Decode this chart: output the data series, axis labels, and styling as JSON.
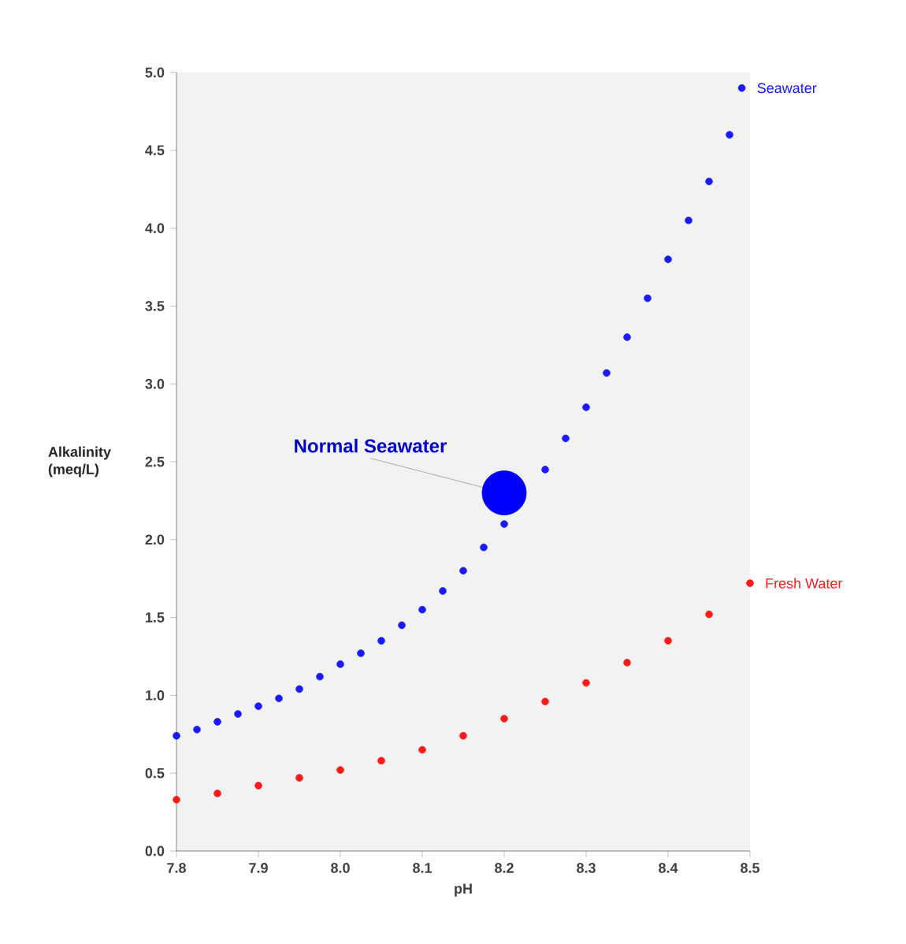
{
  "chart_data": {
    "type": "scatter",
    "xlabel": "pH",
    "ylabel": "Alkalinity (meq/L)",
    "xlim": [
      7.8,
      8.5
    ],
    "ylim": [
      0,
      5
    ],
    "xticks": [
      {
        "value": 7.8,
        "label": "7.8"
      },
      {
        "value": 7.9,
        "label": "7.9"
      },
      {
        "value": 8.0,
        "label": "8.0"
      },
      {
        "value": 8.1,
        "label": "8.1"
      },
      {
        "value": 8.2,
        "label": "8.2"
      },
      {
        "value": 8.3,
        "label": "8.3"
      },
      {
        "value": 8.4,
        "label": "8.4"
      },
      {
        "value": 8.5,
        "label": "8.5"
      }
    ],
    "yticks": [
      {
        "value": 0,
        "label": "0.0"
      },
      {
        "value": 0.5,
        "label": "0.5"
      },
      {
        "value": 1,
        "label": "1.0"
      },
      {
        "value": 1.5,
        "label": "1.5"
      },
      {
        "value": 2,
        "label": "2.0"
      },
      {
        "value": 2.5,
        "label": "2.5"
      },
      {
        "value": 3,
        "label": "3.0"
      },
      {
        "value": 3.5,
        "label": "3.5"
      },
      {
        "value": 4,
        "label": "4.0"
      },
      {
        "value": 4.5,
        "label": "4.5"
      },
      {
        "value": 5,
        "label": "5.0"
      }
    ],
    "series": [
      {
        "name": "Seawater",
        "color": "#1a1aff",
        "x": [
          7.8,
          7.825,
          7.85,
          7.875,
          7.9,
          7.925,
          7.95,
          7.975,
          8.0,
          8.025,
          8.05,
          8.075,
          8.1,
          8.125,
          8.15,
          8.175,
          8.2,
          8.225,
          8.25,
          8.275,
          8.3,
          8.325,
          8.35,
          8.375,
          8.4,
          8.425,
          8.45,
          8.475,
          8.49
        ],
        "values": [
          0.74,
          0.78,
          0.83,
          0.88,
          0.93,
          0.98,
          1.04,
          1.12,
          1.2,
          1.27,
          1.35,
          1.45,
          1.55,
          1.67,
          1.8,
          1.95,
          2.1,
          null,
          2.45,
          2.65,
          2.85,
          3.07,
          3.3,
          3.55,
          3.8,
          4.05,
          4.3,
          4.6,
          4.9
        ]
      },
      {
        "name": "Fresh Water",
        "color": "#ff1a1a",
        "x": [
          7.8,
          7.85,
          7.9,
          7.95,
          8.0,
          8.05,
          8.1,
          8.15,
          8.2,
          8.25,
          8.3,
          8.35,
          8.4,
          8.45,
          8.5
        ],
        "values": [
          0.33,
          0.37,
          0.42,
          0.47,
          0.52,
          0.58,
          0.65,
          0.74,
          0.85,
          0.96,
          1.08,
          1.21,
          1.35,
          1.52,
          1.72
        ]
      },
      {
        "type": "bubble",
        "color": "#0000ff",
        "x": [
          8.2
        ],
        "values": [
          2.3
        ],
        "sizes": [
          1
        ]
      }
    ],
    "annotations": [
      {
        "text": "Normal Seawater",
        "x": 8.2,
        "y": 2.3
      }
    ]
  }
}
